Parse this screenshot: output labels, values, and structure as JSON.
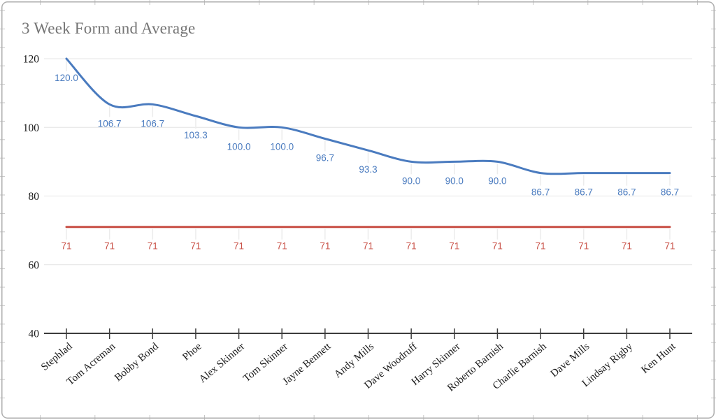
{
  "title": "3 Week Form and Average",
  "chart_data": {
    "type": "line",
    "title": "3 Week Form and Average",
    "smooth": true,
    "legend": "none",
    "grid": true,
    "xlabel": "",
    "ylabel": "",
    "ylim": [
      40,
      120
    ],
    "yticks": [
      120,
      100,
      80,
      60,
      40
    ],
    "ytick_labels": [
      "120",
      "100",
      "80",
      "60",
      "40"
    ],
    "categories": [
      "Stephlad",
      "Tom Acreman",
      "Bobby Bond",
      "Phoe",
      "Alex Skinner",
      "Tom Skinner",
      "Jayne Bennett",
      "Andy Mills",
      "Dave Woodruff",
      "Harry Skinner",
      "Roberto Barnish",
      "Charlie Barnish",
      "Dave Mills",
      "Lindsay Rigby",
      "Ken Hunt"
    ],
    "series": [
      {
        "id": "form",
        "smooth": true,
        "color": "#4a7bbf",
        "label_color": "#4a7bbf",
        "values": [
          120,
          106.7,
          106.7,
          103.3,
          100,
          100,
          96.7,
          93.3,
          90,
          90,
          90,
          86.7,
          86.7,
          86.7,
          86.7
        ],
        "point_labels": [
          "120.0",
          "106.7",
          "106.7",
          "103.3",
          "100.0",
          "100.0",
          "96.7",
          "93.3",
          "90.0",
          "90.0",
          "90.0",
          "86.7",
          "86.7",
          "86.7",
          "86.7"
        ]
      },
      {
        "id": "average",
        "smooth": false,
        "color": "#c84f45",
        "label_color": "#c84f45",
        "values": [
          71,
          71,
          71,
          71,
          71,
          71,
          71,
          71,
          71,
          71,
          71,
          71,
          71,
          71,
          71
        ],
        "point_labels": [
          "71",
          "71",
          "71",
          "71",
          "71",
          "71",
          "71",
          "71",
          "71",
          "71",
          "71",
          "71",
          "71",
          "71",
          "71"
        ]
      }
    ]
  },
  "colors": {
    "title": "#757575",
    "axis": "#3c3c3c",
    "axis_text": "#1a1a1a",
    "gridline": "#e4e4e4",
    "stem": "#ececec",
    "frame_border": "#aeaeae",
    "frame_tick": "#c6c6c6"
  }
}
